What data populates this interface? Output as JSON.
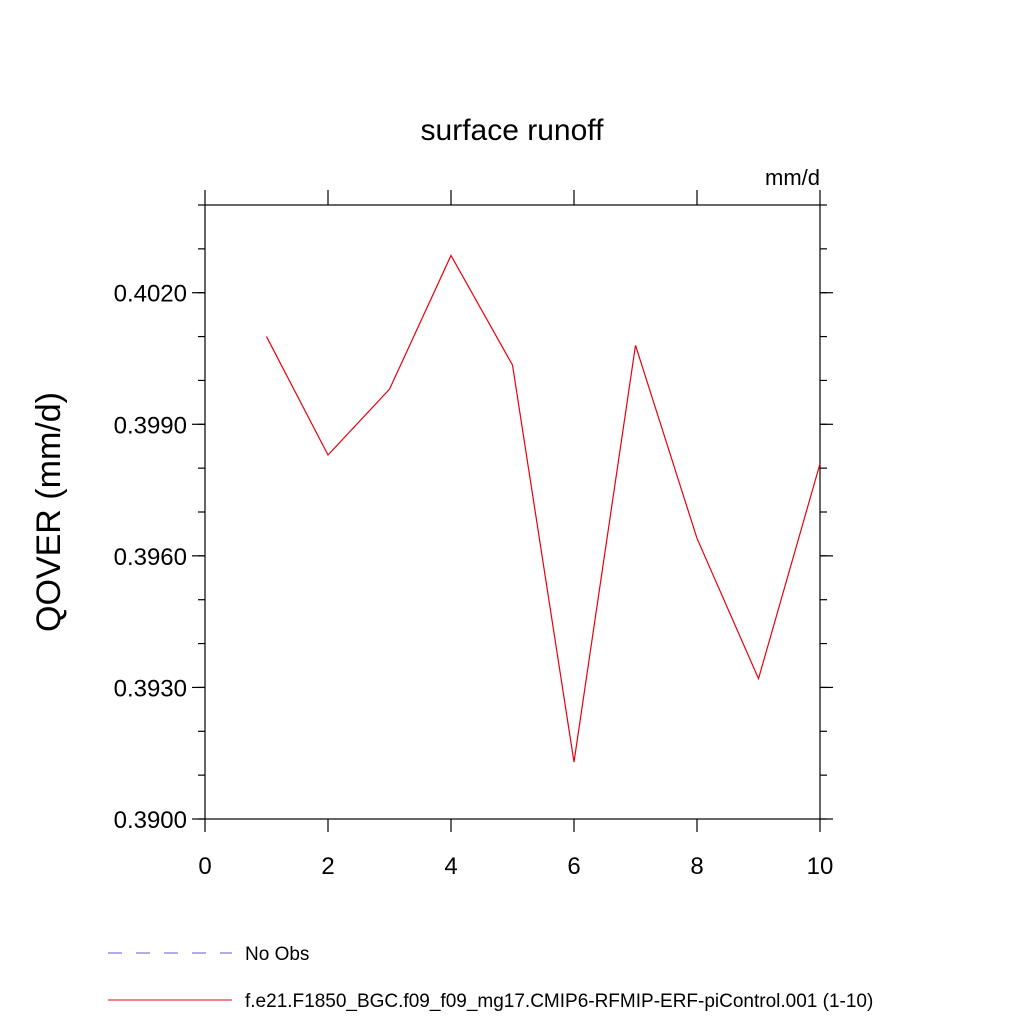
{
  "chart_data": {
    "type": "line",
    "title": "surface runoff",
    "units_label": "mm/d",
    "xlabel": "",
    "ylabel": "QOVER  (mm/d)",
    "xlim": [
      0,
      10
    ],
    "ylim": [
      0.39,
      0.404
    ],
    "x_ticks": [
      0,
      2,
      4,
      6,
      8,
      10
    ],
    "x_tick_labels": [
      "0",
      "2",
      "4",
      "6",
      "8",
      "10"
    ],
    "y_ticks": [
      0.39,
      0.393,
      0.396,
      0.399,
      0.402
    ],
    "y_tick_labels": [
      "0.3900",
      "0.3930",
      "0.3960",
      "0.3990",
      "0.4020"
    ],
    "grid": false,
    "legend_position": "bottom",
    "series": [
      {
        "name": "No Obs",
        "color": "#6a5acd",
        "dash": "dashed",
        "x": [],
        "values": []
      },
      {
        "name": "f.e21.F1850_BGC.f09_f09_mg17.CMIP6-RFMIP-ERF-piControl.001 (1-10)",
        "color": "#e8000b",
        "dash": "solid",
        "x": [
          1,
          2,
          3,
          4,
          5,
          6,
          7,
          8,
          9,
          10
        ],
        "values": [
          0.401,
          0.3983,
          0.3998,
          0.40285,
          0.40035,
          0.3913,
          0.4008,
          0.3964,
          0.3932,
          0.3981
        ]
      }
    ]
  }
}
